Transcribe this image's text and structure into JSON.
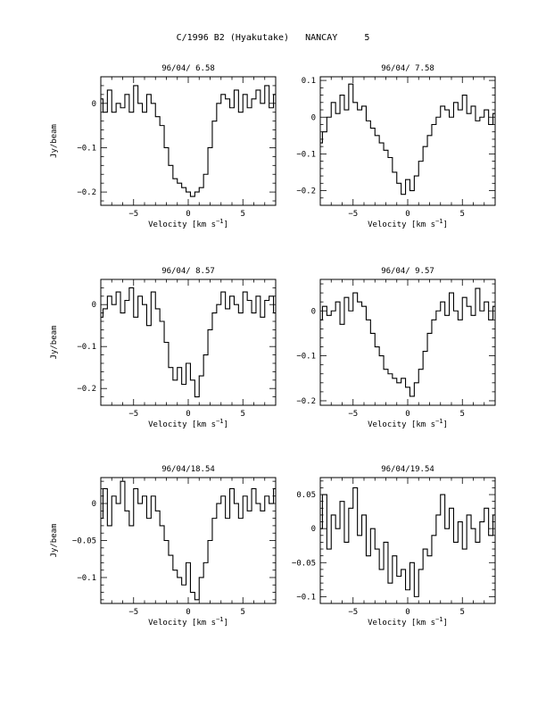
{
  "page": {
    "title": "C/1996 B2 (Hyakutake)   NANCAY     5"
  },
  "chart_data": [
    {
      "type": "line",
      "title": "96/04/ 6.58",
      "xlabel": "Velocity [km s",
      "xlabel_exp": "−1",
      "xlabel_end": "]",
      "ylabel": "Jy/beam",
      "xlim": [
        -8,
        8
      ],
      "ylim": [
        -0.23,
        0.06
      ],
      "xticks": [
        -5,
        0,
        5
      ],
      "xtick_labels": [
        "−5",
        "0",
        "5"
      ],
      "yticks": [
        0,
        -0.1,
        -0.2
      ],
      "ytick_labels": [
        "0",
        "−0.1",
        "−0.2"
      ],
      "x": [
        -8.0,
        -7.6,
        -7.2,
        -6.8,
        -6.4,
        -6.0,
        -5.6,
        -5.2,
        -4.8,
        -4.4,
        -4.0,
        -3.6,
        -3.2,
        -2.8,
        -2.4,
        -2.0,
        -1.6,
        -1.2,
        -0.8,
        -0.4,
        0.0,
        0.4,
        0.8,
        1.2,
        1.6,
        2.0,
        2.4,
        2.8,
        3.2,
        3.6,
        4.0,
        4.4,
        4.8,
        5.2,
        5.6,
        6.0,
        6.4,
        6.8,
        7.2,
        7.6,
        8.0
      ],
      "y": [
        0.01,
        -0.02,
        0.03,
        -0.02,
        0.0,
        -0.01,
        0.02,
        -0.02,
        0.04,
        0.0,
        -0.02,
        0.02,
        0.0,
        -0.03,
        -0.05,
        -0.1,
        -0.14,
        -0.17,
        -0.18,
        -0.19,
        -0.2,
        -0.21,
        -0.2,
        -0.19,
        -0.16,
        -0.1,
        -0.04,
        0.0,
        0.02,
        0.01,
        -0.01,
        0.03,
        -0.02,
        0.02,
        -0.01,
        0.01,
        0.03,
        0.0,
        0.04,
        -0.01,
        0.02
      ]
    },
    {
      "type": "line",
      "title": "96/04/ 7.58",
      "xlabel": "Velocity [km s",
      "xlabel_exp": "−1",
      "xlabel_end": "]",
      "ylabel": "",
      "xlim": [
        -8,
        8
      ],
      "ylim": [
        -0.24,
        0.11
      ],
      "xticks": [
        -5,
        0,
        5
      ],
      "xtick_labels": [
        "−5",
        "0",
        "5"
      ],
      "yticks": [
        0.1,
        0,
        -0.1,
        -0.2
      ],
      "ytick_labels": [
        "0.1",
        "0",
        "−0.1",
        "−0.2"
      ],
      "x": [
        -8.0,
        -7.6,
        -7.2,
        -6.8,
        -6.4,
        -6.0,
        -5.6,
        -5.2,
        -4.8,
        -4.4,
        -4.0,
        -3.6,
        -3.2,
        -2.8,
        -2.4,
        -2.0,
        -1.6,
        -1.2,
        -0.8,
        -0.4,
        0.0,
        0.4,
        0.8,
        1.2,
        1.6,
        2.0,
        2.4,
        2.8,
        3.2,
        3.6,
        4.0,
        4.4,
        4.8,
        5.2,
        5.6,
        6.0,
        6.4,
        6.8,
        7.2,
        7.6,
        8.0
      ],
      "y": [
        -0.07,
        -0.04,
        0.0,
        0.04,
        0.01,
        0.06,
        0.02,
        0.09,
        0.04,
        0.02,
        0.03,
        -0.01,
        -0.03,
        -0.05,
        -0.07,
        -0.09,
        -0.11,
        -0.15,
        -0.18,
        -0.21,
        -0.17,
        -0.2,
        -0.16,
        -0.12,
        -0.08,
        -0.05,
        -0.02,
        0.0,
        0.03,
        0.02,
        0.0,
        0.04,
        0.02,
        0.06,
        0.01,
        0.03,
        -0.01,
        0.0,
        0.02,
        -0.02,
        0.01
      ]
    },
    {
      "type": "line",
      "title": "96/04/ 8.57",
      "xlabel": "Velocity [km s",
      "xlabel_exp": "−1",
      "xlabel_end": "]",
      "ylabel": "Jy/beam",
      "xlim": [
        -8,
        8
      ],
      "ylim": [
        -0.24,
        0.06
      ],
      "xticks": [
        -5,
        0,
        5
      ],
      "xtick_labels": [
        "−5",
        "0",
        "5"
      ],
      "yticks": [
        0,
        -0.1,
        -0.2
      ],
      "ytick_labels": [
        "0",
        "−0.1",
        "−0.2"
      ],
      "x": [
        -8.0,
        -7.6,
        -7.2,
        -6.8,
        -6.4,
        -6.0,
        -5.6,
        -5.2,
        -4.8,
        -4.4,
        -4.0,
        -3.6,
        -3.2,
        -2.8,
        -2.4,
        -2.0,
        -1.6,
        -1.2,
        -0.8,
        -0.4,
        0.0,
        0.4,
        0.8,
        1.2,
        1.6,
        2.0,
        2.4,
        2.8,
        3.2,
        3.6,
        4.0,
        4.4,
        4.8,
        5.2,
        5.6,
        6.0,
        6.4,
        6.8,
        7.2,
        7.6,
        8.0
      ],
      "y": [
        -0.03,
        -0.01,
        0.02,
        0.0,
        0.03,
        -0.02,
        0.01,
        0.04,
        -0.03,
        0.02,
        0.0,
        -0.05,
        0.03,
        -0.01,
        -0.04,
        -0.09,
        -0.15,
        -0.18,
        -0.15,
        -0.19,
        -0.14,
        -0.18,
        -0.22,
        -0.17,
        -0.12,
        -0.06,
        -0.02,
        0.0,
        0.03,
        -0.01,
        0.02,
        0.0,
        -0.02,
        0.03,
        0.01,
        -0.02,
        0.02,
        -0.03,
        0.01,
        0.02,
        -0.02
      ]
    },
    {
      "type": "line",
      "title": "96/04/ 9.57",
      "xlabel": "Velocity [km s",
      "xlabel_exp": "−1",
      "xlabel_end": "]",
      "ylabel": "",
      "xlim": [
        -8,
        8
      ],
      "ylim": [
        -0.21,
        0.07
      ],
      "xticks": [
        -5,
        0,
        5
      ],
      "xtick_labels": [
        "−5",
        "0",
        "5"
      ],
      "yticks": [
        0,
        -0.1,
        -0.2
      ],
      "ytick_labels": [
        "0",
        "−0.1",
        "−0.2"
      ],
      "x": [
        -8.0,
        -7.6,
        -7.2,
        -6.8,
        -6.4,
        -6.0,
        -5.6,
        -5.2,
        -4.8,
        -4.4,
        -4.0,
        -3.6,
        -3.2,
        -2.8,
        -2.4,
        -2.0,
        -1.6,
        -1.2,
        -0.8,
        -0.4,
        0.0,
        0.4,
        0.8,
        1.2,
        1.6,
        2.0,
        2.4,
        2.8,
        3.2,
        3.6,
        4.0,
        4.4,
        4.8,
        5.2,
        5.6,
        6.0,
        6.4,
        6.8,
        7.2,
        7.6,
        8.0
      ],
      "y": [
        -0.02,
        0.01,
        -0.01,
        0.0,
        0.02,
        -0.03,
        0.03,
        0.0,
        0.04,
        0.02,
        0.01,
        -0.02,
        -0.05,
        -0.08,
        -0.1,
        -0.13,
        -0.14,
        -0.15,
        -0.16,
        -0.15,
        -0.17,
        -0.19,
        -0.16,
        -0.13,
        -0.09,
        -0.05,
        -0.02,
        0.0,
        0.02,
        -0.01,
        0.04,
        0.0,
        -0.02,
        0.03,
        0.01,
        -0.01,
        0.05,
        0.0,
        0.02,
        -0.02,
        0.01
      ]
    },
    {
      "type": "line",
      "title": "96/04/18.54",
      "xlabel": "Velocity [km s",
      "xlabel_exp": "−1",
      "xlabel_end": "]",
      "ylabel": "Jy/beam",
      "xlim": [
        -8,
        8
      ],
      "ylim": [
        -0.135,
        0.035
      ],
      "xticks": [
        -5,
        0,
        5
      ],
      "xtick_labels": [
        "−5",
        "0",
        "5"
      ],
      "yticks": [
        0,
        -0.05,
        -0.1
      ],
      "ytick_labels": [
        "0",
        "−0.05",
        "−0.1"
      ],
      "x": [
        -8.0,
        -7.6,
        -7.2,
        -6.8,
        -6.4,
        -6.0,
        -5.6,
        -5.2,
        -4.8,
        -4.4,
        -4.0,
        -3.6,
        -3.2,
        -2.8,
        -2.4,
        -2.0,
        -1.6,
        -1.2,
        -0.8,
        -0.4,
        0.0,
        0.4,
        0.8,
        1.2,
        1.6,
        2.0,
        2.4,
        2.8,
        3.2,
        3.6,
        4.0,
        4.4,
        4.8,
        5.2,
        5.6,
        6.0,
        6.4,
        6.8,
        7.2,
        7.6,
        8.0
      ],
      "y": [
        -0.02,
        0.02,
        -0.03,
        0.01,
        0.0,
        0.03,
        -0.01,
        -0.03,
        0.02,
        0.0,
        0.01,
        -0.02,
        0.01,
        -0.01,
        -0.03,
        -0.05,
        -0.07,
        -0.09,
        -0.1,
        -0.11,
        -0.08,
        -0.12,
        -0.13,
        -0.1,
        -0.08,
        -0.05,
        -0.02,
        0.0,
        0.01,
        -0.02,
        0.02,
        0.0,
        -0.02,
        0.01,
        -0.01,
        0.02,
        0.0,
        -0.01,
        0.01,
        0.0,
        0.02
      ]
    },
    {
      "type": "line",
      "title": "96/04/19.54",
      "xlabel": "Velocity [km s",
      "xlabel_exp": "−1",
      "xlabel_end": "]",
      "ylabel": "",
      "xlim": [
        -8,
        8
      ],
      "ylim": [
        -0.11,
        0.075
      ],
      "xticks": [
        -5,
        0,
        5
      ],
      "xtick_labels": [
        "−5",
        "0",
        "5"
      ],
      "yticks": [
        0.05,
        0,
        -0.05,
        -0.1
      ],
      "ytick_labels": [
        "0.05",
        "0",
        "−0.05",
        "−0.1"
      ],
      "x": [
        -8.0,
        -7.6,
        -7.2,
        -6.8,
        -6.4,
        -6.0,
        -5.6,
        -5.2,
        -4.8,
        -4.4,
        -4.0,
        -3.6,
        -3.2,
        -2.8,
        -2.4,
        -2.0,
        -1.6,
        -1.2,
        -0.8,
        -0.4,
        0.0,
        0.4,
        0.8,
        1.2,
        1.6,
        2.0,
        2.4,
        2.8,
        3.2,
        3.6,
        4.0,
        4.4,
        4.8,
        5.2,
        5.6,
        6.0,
        6.4,
        6.8,
        7.2,
        7.6,
        8.0
      ],
      "y": [
        0.0,
        0.05,
        -0.03,
        0.02,
        0.0,
        0.04,
        -0.02,
        0.03,
        0.06,
        -0.01,
        0.02,
        -0.04,
        0.0,
        -0.03,
        -0.06,
        -0.02,
        -0.08,
        -0.04,
        -0.07,
        -0.06,
        -0.09,
        -0.05,
        -0.1,
        -0.06,
        -0.03,
        -0.04,
        -0.01,
        0.02,
        0.05,
        0.0,
        0.03,
        -0.02,
        0.01,
        -0.03,
        0.02,
        0.0,
        -0.02,
        0.01,
        0.03,
        -0.01,
        0.02
      ]
    }
  ]
}
